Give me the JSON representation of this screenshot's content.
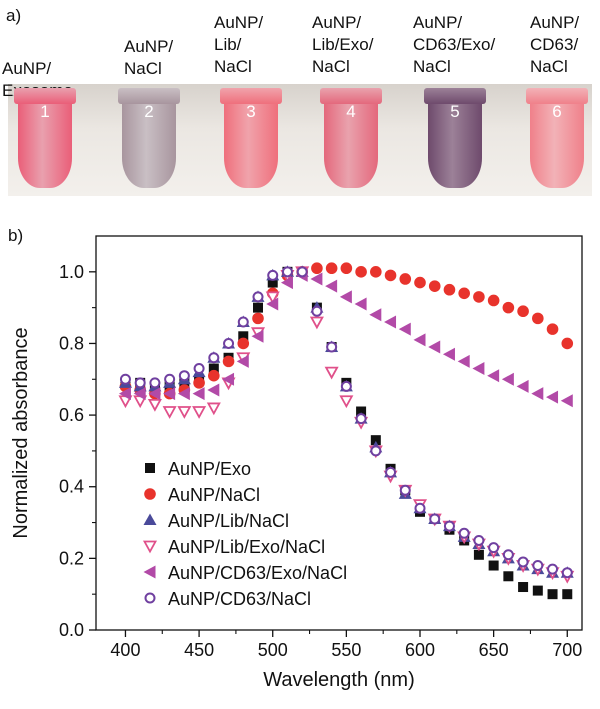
{
  "panel_a": {
    "label": "a)",
    "tubes": [
      {
        "label": "AuNP/\nExosome",
        "number": "1",
        "color": "#ea5e78",
        "cap": "#e9a0ae"
      },
      {
        "label": "AuNP/\nNaCl",
        "number": "2",
        "color": "#a8959e",
        "cap": "#c9bfc4"
      },
      {
        "label": "AuNP/\nLib/\nNaCl",
        "number": "3",
        "color": "#ef6f7c",
        "cap": "#f0a3ab"
      },
      {
        "label": "AuNP/\nLib/Exo/\nNaCl",
        "number": "4",
        "color": "#e4687c",
        "cap": "#e9a2ad"
      },
      {
        "label": "AuNP/\nCD63/Exo/\nNaCl",
        "number": "5",
        "color": "#6e4a6c",
        "cap": "#9c8198"
      },
      {
        "label": "AuNP/\nCD63/\nNaCl",
        "number": "6",
        "color": "#f0808a",
        "cap": "#f2b2b7"
      }
    ]
  },
  "panel_b": {
    "label": "b)"
  },
  "chart_data": {
    "type": "scatter",
    "xlabel": "Wavelength (nm)",
    "ylabel": "Normalized absorbance",
    "xlim": [
      380,
      710
    ],
    "ylim": [
      0,
      1.1
    ],
    "xticks": [
      "400",
      "450",
      "500",
      "550",
      "600",
      "650",
      "700"
    ],
    "yticks": [
      "0.0",
      "0.2",
      "0.4",
      "0.6",
      "0.8",
      "1.0"
    ],
    "legend_position": "bottom-left",
    "x": [
      400,
      410,
      420,
      430,
      440,
      450,
      460,
      470,
      480,
      490,
      500,
      510,
      520,
      530,
      540,
      550,
      560,
      570,
      580,
      590,
      600,
      610,
      620,
      630,
      640,
      650,
      660,
      670,
      680,
      690,
      700
    ],
    "series": [
      {
        "name": "AuNP/Exo",
        "marker": "square",
        "color": "#111111",
        "values": [
          0.69,
          0.69,
          0.68,
          0.68,
          0.69,
          0.7,
          0.73,
          0.76,
          0.82,
          0.9,
          0.97,
          1.0,
          1.0,
          0.9,
          0.79,
          0.69,
          0.61,
          0.53,
          0.45,
          0.39,
          0.33,
          0.31,
          0.28,
          0.25,
          0.21,
          0.18,
          0.15,
          0.12,
          0.11,
          0.1,
          0.1
        ]
      },
      {
        "name": "AuNP/NaCl",
        "marker": "circle",
        "color": "#e8332c",
        "values": [
          0.68,
          0.67,
          0.66,
          0.66,
          0.67,
          0.69,
          0.71,
          0.75,
          0.8,
          0.87,
          0.94,
          0.99,
          1.0,
          1.01,
          1.01,
          1.01,
          1.0,
          1.0,
          0.99,
          0.98,
          0.97,
          0.96,
          0.95,
          0.94,
          0.93,
          0.92,
          0.9,
          0.89,
          0.87,
          0.84,
          0.8
        ]
      },
      {
        "name": "AuNP/Lib/NaCl",
        "marker": "triangle-up",
        "color": "#4a4a9a",
        "values": [
          0.69,
          0.68,
          0.68,
          0.69,
          0.7,
          0.72,
          0.76,
          0.8,
          0.86,
          0.93,
          0.99,
          1.0,
          1.0,
          0.9,
          0.79,
          0.68,
          0.59,
          0.51,
          0.44,
          0.38,
          0.34,
          0.31,
          0.29,
          0.26,
          0.24,
          0.22,
          0.2,
          0.18,
          0.17,
          0.16,
          0.16
        ]
      },
      {
        "name": "AuNP/Lib/Exo/NaCl",
        "marker": "triangle-down-open",
        "color": "#e0508a",
        "values": [
          0.64,
          0.64,
          0.63,
          0.61,
          0.61,
          0.61,
          0.62,
          0.69,
          0.76,
          0.83,
          0.93,
          0.99,
          1.0,
          0.86,
          0.72,
          0.64,
          0.58,
          0.5,
          0.43,
          0.39,
          0.35,
          0.31,
          0.29,
          0.26,
          0.24,
          0.22,
          0.2,
          0.18,
          0.17,
          0.16,
          0.15
        ]
      },
      {
        "name": "AuNP/CD63/Exo/NaCl",
        "marker": "triangle-left",
        "color": "#b24aa7",
        "values": [
          0.66,
          0.66,
          0.66,
          0.66,
          0.66,
          0.66,
          0.67,
          0.7,
          0.75,
          0.82,
          0.91,
          0.97,
          0.99,
          0.98,
          0.96,
          0.93,
          0.91,
          0.88,
          0.86,
          0.84,
          0.81,
          0.79,
          0.77,
          0.75,
          0.73,
          0.71,
          0.7,
          0.68,
          0.66,
          0.65,
          0.64
        ]
      },
      {
        "name": "AuNP/CD63/NaCl",
        "marker": "circle-open",
        "color": "#7040a0",
        "values": [
          0.7,
          0.69,
          0.69,
          0.7,
          0.71,
          0.73,
          0.76,
          0.8,
          0.86,
          0.93,
          0.99,
          1.0,
          1.0,
          0.89,
          0.79,
          0.68,
          0.59,
          0.5,
          0.44,
          0.39,
          0.34,
          0.31,
          0.29,
          0.27,
          0.25,
          0.23,
          0.21,
          0.19,
          0.18,
          0.17,
          0.16
        ]
      }
    ]
  }
}
